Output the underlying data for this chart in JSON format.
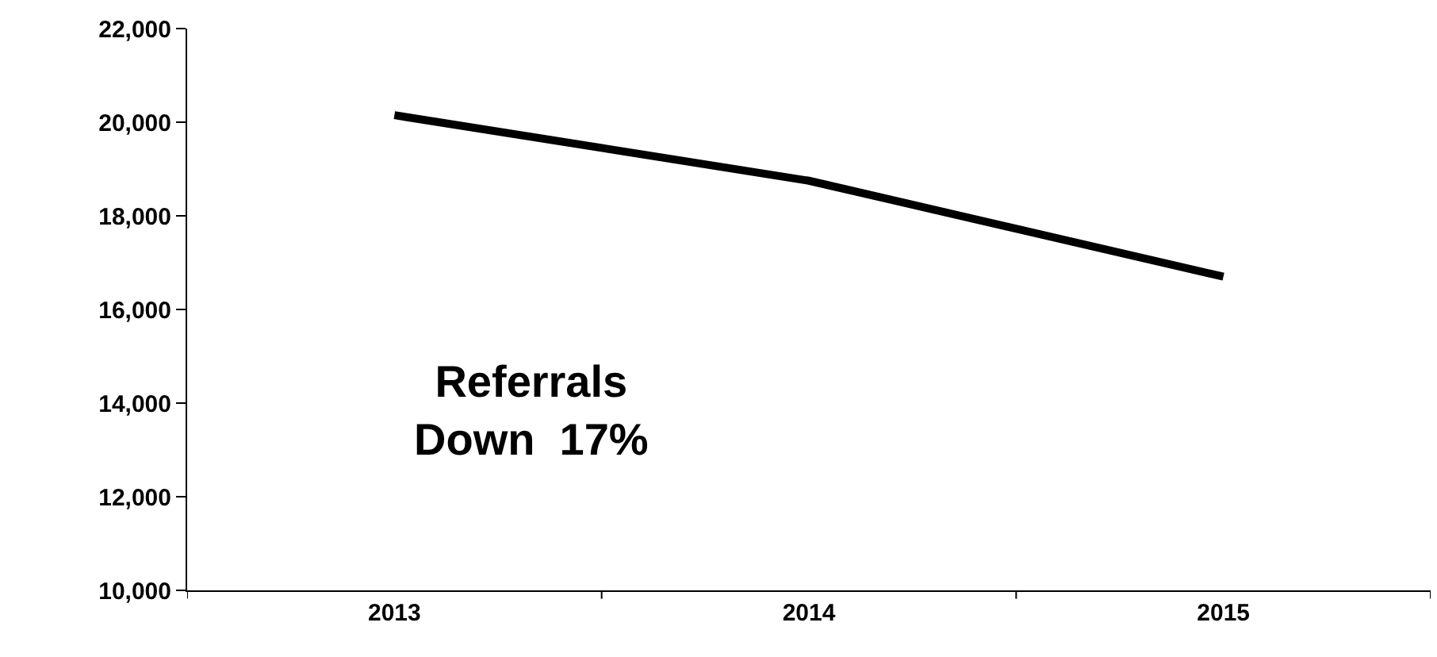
{
  "chart_data": {
    "type": "line",
    "categories": [
      "2013",
      "2014",
      "2015"
    ],
    "series": [
      {
        "color": "#000000",
        "values": [
          20150,
          18750,
          16700
        ]
      }
    ],
    "ylim": [
      10000,
      22000
    ],
    "yticks": [
      {
        "value": 10000,
        "label": "10,000"
      },
      {
        "value": 12000,
        "label": "12,000"
      },
      {
        "value": 14000,
        "label": "14,000"
      },
      {
        "value": 16000,
        "label": "16,000"
      },
      {
        "value": 18000,
        "label": "18,000"
      },
      {
        "value": 20000,
        "label": "20,000"
      },
      {
        "value": 22000,
        "label": "22,000"
      }
    ],
    "grid": false,
    "marker": "none",
    "line_style": "solid",
    "annotations": [
      "Referrals\nDown  17%"
    ]
  }
}
